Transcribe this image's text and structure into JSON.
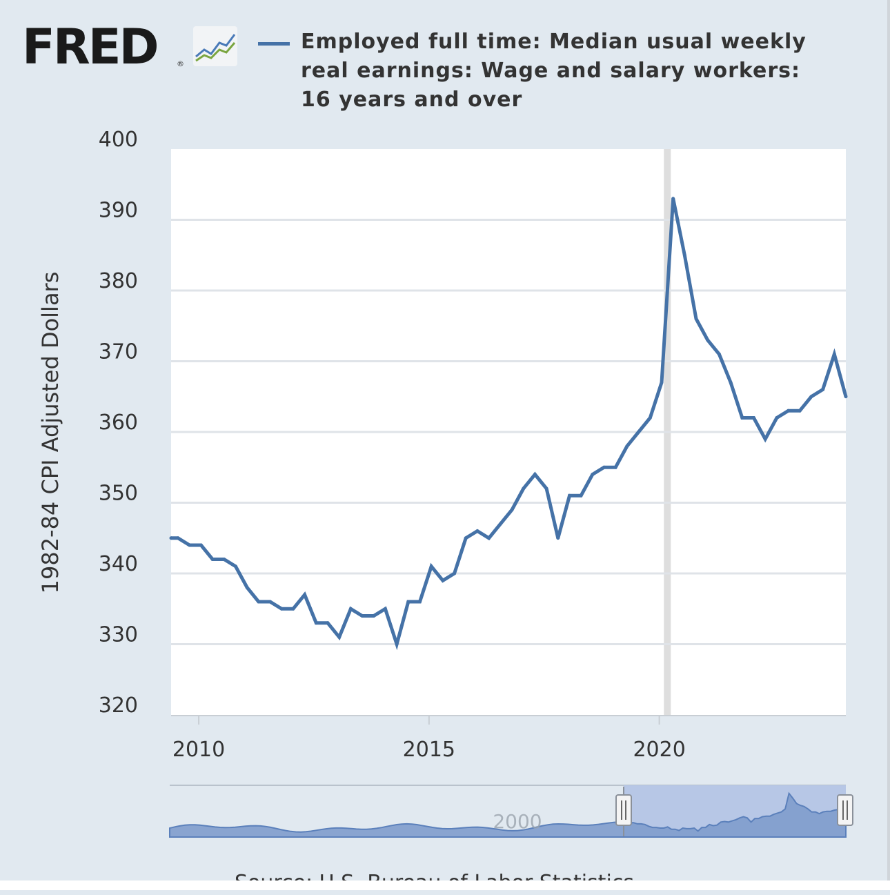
{
  "header": {
    "logo_text": "FRED",
    "logo_reg": "®",
    "legend_label": "Employed full time: Median usual weekly real earnings: Wage and salary workers: 16 years and over"
  },
  "colors": {
    "series": "#4572a7",
    "background": "#e1e9f0",
    "plot_background": "#ffffff",
    "navigator_fill": "#8fa8d2",
    "navigator_selection": "#b7c7e6"
  },
  "chart_data": {
    "type": "line",
    "title": "Employed full time: Median usual weekly real earnings: Wage and salary workers: 16 years and over",
    "xlabel": "",
    "ylabel": "1982-84 CPI Adjusted Dollars",
    "ylim": [
      320,
      400
    ],
    "yticks": [
      320,
      330,
      340,
      350,
      360,
      370,
      380,
      390,
      400
    ],
    "xlim": [
      2009.4,
      2024.05
    ],
    "xticks": [
      2010,
      2015,
      2020
    ],
    "recession": [
      2020.1,
      2020.25
    ],
    "grid": true,
    "series": [
      {
        "name": "Employed full time: Median usual weekly real earnings: Wage and salary workers: 16 years and over",
        "x": [
          2009.4,
          2009.55,
          2009.8,
          2010.05,
          2010.3,
          2010.55,
          2010.8,
          2011.05,
          2011.3,
          2011.55,
          2011.8,
          2012.05,
          2012.3,
          2012.55,
          2012.8,
          2013.05,
          2013.3,
          2013.55,
          2013.8,
          2014.05,
          2014.3,
          2014.55,
          2014.8,
          2015.05,
          2015.3,
          2015.55,
          2015.8,
          2016.05,
          2016.3,
          2016.55,
          2016.8,
          2017.05,
          2017.3,
          2017.55,
          2017.8,
          2018.05,
          2018.3,
          2018.55,
          2018.8,
          2019.05,
          2019.3,
          2019.55,
          2019.8,
          2020.05,
          2020.3,
          2020.55,
          2020.8,
          2021.05,
          2021.3,
          2021.55,
          2021.8,
          2022.05,
          2022.3,
          2022.55,
          2022.8,
          2023.05,
          2023.3,
          2023.55,
          2023.8,
          2024.05
        ],
        "values": [
          345,
          345,
          344,
          344,
          342,
          342,
          341,
          338,
          336,
          336,
          335,
          335,
          337,
          333,
          333,
          331,
          335,
          334,
          334,
          335,
          330,
          336,
          336,
          341,
          339,
          340,
          345,
          346,
          345,
          347,
          349,
          352,
          354,
          352,
          345,
          351,
          351,
          354,
          355,
          355,
          358,
          360,
          362,
          367,
          393,
          385,
          376,
          373,
          371,
          367,
          362,
          362,
          359,
          362,
          363,
          363,
          365,
          366,
          371,
          365
        ]
      }
    ]
  },
  "navigator": {
    "label": "2000"
  },
  "footer": {
    "source_text": "Source: U.S. Bureau of Labor Statistics"
  }
}
